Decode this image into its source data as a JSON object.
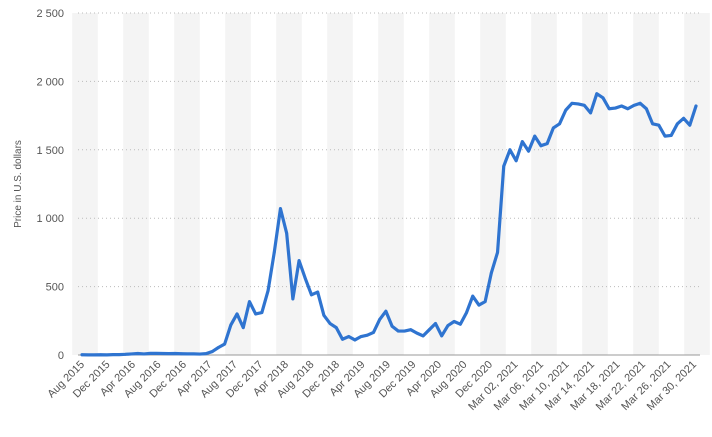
{
  "chart_data": {
    "type": "line",
    "ylabel": "Price in U.S. dollars",
    "ylim": [
      0,
      2500
    ],
    "y_ticks": [
      {
        "value": 0,
        "label": "0"
      },
      {
        "value": 500,
        "label": "500"
      },
      {
        "value": 1000,
        "label": "1 000"
      },
      {
        "value": 1500,
        "label": "1 500"
      },
      {
        "value": 2000,
        "label": "2 000"
      },
      {
        "value": 2500,
        "label": "2 500"
      }
    ],
    "grid": "horizontal-dotted",
    "alternating_bands": true,
    "line_color": "#2f74d0",
    "band_color": "#f4f4f4",
    "x_tick_labels": [
      "Aug 2015",
      "Dec 2015",
      "Apr 2016",
      "Aug 2016",
      "Dec 2016",
      "Apr 2017",
      "Aug 2017",
      "Dec 2017",
      "Apr 2018",
      "Aug 2018",
      "Dec 2018",
      "Apr 2019",
      "Aug 2019",
      "Dec 2019",
      "Apr 2020",
      "Aug 2020",
      "Dec 2020",
      "Mar 02, 2021",
      "Mar 06, 2021",
      "Mar 10, 2021",
      "Mar 14, 2021",
      "Mar 18, 2021",
      "Mar 22, 2021",
      "Mar 26, 2021",
      "Mar 30, 2021"
    ],
    "series": [
      {
        "values": [
          2,
          1,
          1,
          2,
          1,
          3,
          3,
          5,
          8,
          11,
          8,
          12,
          12,
          11,
          10,
          11,
          9,
          8,
          8,
          7,
          10,
          25,
          55,
          80,
          220,
          300,
          200,
          390,
          300,
          310,
          470,
          750,
          1070,
          890,
          410,
          690,
          560,
          440,
          460,
          290,
          230,
          200,
          115,
          135,
          110,
          135,
          145,
          165,
          260,
          320,
          210,
          175,
          175,
          185,
          160,
          140,
          185,
          230,
          140,
          215,
          245,
          225,
          310,
          430,
          365,
          390,
          600,
          750,
          1380,
          1500,
          1420,
          1560,
          1490,
          1600,
          1530,
          1545,
          1660,
          1690,
          1790,
          1840,
          1835,
          1825,
          1770,
          1910,
          1880,
          1800,
          1805,
          1820,
          1800,
          1825,
          1840,
          1800,
          1690,
          1680,
          1600,
          1605,
          1690,
          1730,
          1680,
          1820
        ]
      }
    ]
  }
}
